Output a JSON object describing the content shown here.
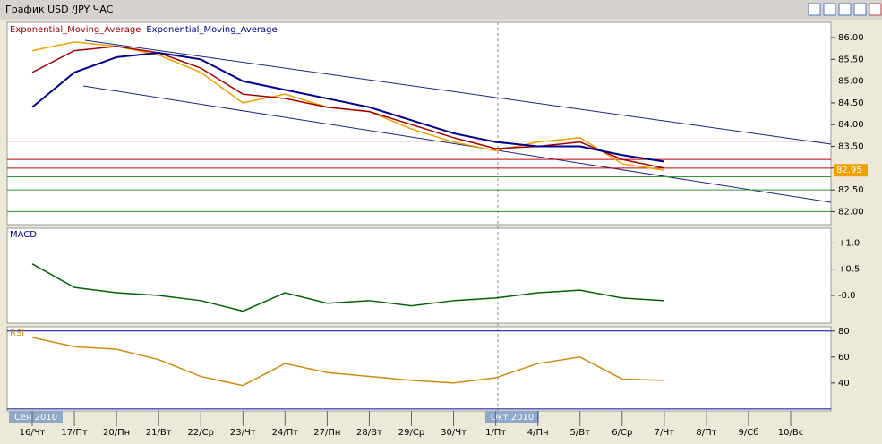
{
  "window": {
    "title": "График USD /JPY  ЧАС"
  },
  "month_labels": [
    "Сен 2010",
    "Окт 2010"
  ],
  "chart_data": [
    {
      "type": "line",
      "categories": [
        "16/Чт",
        "17/Пт",
        "20/Пн",
        "21/Вт",
        "22/Ср",
        "23/Чт",
        "24/Пт",
        "27/Пн",
        "28/Вт",
        "29/Ср",
        "30/Чт",
        "1/Пт",
        "4/Пн",
        "5/Вт",
        "6/Ср",
        "7/Чт",
        "8/Пт",
        "9/Сб",
        "10/Вс"
      ],
      "series": [
        {
          "color": "#f0a000",
          "values": [
            85.7,
            85.9,
            85.8,
            85.6,
            85.2,
            84.5,
            84.7,
            84.4,
            84.3,
            83.9,
            83.6,
            83.4,
            83.6,
            83.7,
            83.1,
            82.95,
            null,
            null,
            null
          ]
        },
        {
          "name": "Exponential_Moving_Average",
          "color": "#a00000",
          "values": [
            85.2,
            85.7,
            85.8,
            85.65,
            85.3,
            84.7,
            84.6,
            84.4,
            84.3,
            84.0,
            83.7,
            83.45,
            83.5,
            83.6,
            83.2,
            83.0,
            null,
            null,
            null
          ]
        },
        {
          "name": "Exponential_Moving_Average",
          "color": "#00008b",
          "values": [
            84.4,
            85.2,
            85.55,
            85.65,
            85.5,
            85.0,
            84.8,
            84.6,
            84.4,
            84.1,
            83.8,
            83.6,
            83.5,
            83.5,
            83.3,
            83.15,
            null,
            null,
            null
          ]
        }
      ],
      "last_price": 82.95,
      "hlines": [
        {
          "value": 83.62,
          "color": "#c00000"
        },
        {
          "value": 83.2,
          "color": "#c00000"
        },
        {
          "value": 83.0,
          "color": "#c00000"
        },
        {
          "value": 82.8,
          "color": "#2e9a2e"
        },
        {
          "value": 82.5,
          "color": "#2e9a2e"
        },
        {
          "value": 82.0,
          "color": "#2e9a2e"
        }
      ],
      "ylim": [
        81.7,
        86.35
      ],
      "yticks": [
        {
          "value": 82,
          "label": "82.00"
        },
        {
          "value": 82.5,
          "label": "82.50"
        },
        {
          "value": 83,
          "label": "83.00"
        },
        {
          "value": 83.5,
          "label": "83.50"
        },
        {
          "value": 84,
          "label": "84.00"
        },
        {
          "value": 84.5,
          "label": "84.50"
        },
        {
          "value": 85,
          "label": "85.00"
        },
        {
          "value": 85.5,
          "label": "85.50"
        },
        {
          "value": 86,
          "label": "86.00"
        }
      ]
    },
    {
      "type": "line",
      "title": "MACD",
      "series": [
        {
          "color": "#006400",
          "values": [
            0.6,
            0.15,
            0.05,
            0.0,
            -0.1,
            -0.3,
            0.05,
            -0.15,
            -0.1,
            -0.2,
            -0.1,
            -0.05,
            0.05,
            0.1,
            -0.05,
            -0.1,
            null,
            null,
            null
          ]
        }
      ],
      "ylim": [
        -0.53,
        1.28
      ],
      "yticks": [
        {
          "value": 0,
          "label": "-0.0"
        },
        {
          "value": 0.5,
          "label": "+0.5"
        },
        {
          "value": 1,
          "label": "+1.0"
        }
      ]
    },
    {
      "type": "line",
      "title": "RSI",
      "series": [
        {
          "color": "#d08a10",
          "values": [
            75,
            68,
            66,
            58,
            45,
            38,
            55,
            48,
            45,
            42,
            40,
            44,
            55,
            60,
            43,
            42,
            null,
            null,
            null
          ]
        }
      ],
      "hlines": [
        {
          "value": 80,
          "color": "#00008b"
        },
        {
          "value": 20,
          "color": "#00008b"
        }
      ],
      "ylim": [
        18.5,
        83.3
      ],
      "yticks": [
        40,
        60,
        80
      ]
    }
  ]
}
